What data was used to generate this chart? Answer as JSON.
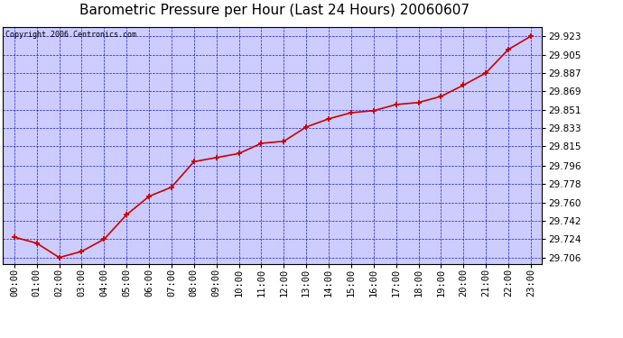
{
  "title": "Barometric Pressure per Hour (Last 24 Hours) 20060607",
  "copyright": "Copyright 2006 Centronics.com",
  "hours": [
    0,
    1,
    2,
    3,
    4,
    5,
    6,
    7,
    8,
    9,
    10,
    11,
    12,
    13,
    14,
    15,
    16,
    17,
    18,
    19,
    20,
    21,
    22,
    23
  ],
  "hour_labels": [
    "00:00",
    "01:00",
    "02:00",
    "03:00",
    "04:00",
    "05:00",
    "06:00",
    "07:00",
    "08:00",
    "09:00",
    "10:00",
    "11:00",
    "12:00",
    "13:00",
    "14:00",
    "15:00",
    "16:00",
    "17:00",
    "18:00",
    "19:00",
    "20:00",
    "21:00",
    "22:00",
    "23:00"
  ],
  "pressure": [
    29.726,
    29.72,
    29.706,
    29.712,
    29.724,
    29.748,
    29.766,
    29.775,
    29.8,
    29.804,
    29.808,
    29.818,
    29.82,
    29.834,
    29.842,
    29.848,
    29.85,
    29.856,
    29.858,
    29.864,
    29.875,
    29.887,
    29.91,
    29.923
  ],
  "yticks": [
    29.706,
    29.724,
    29.742,
    29.76,
    29.778,
    29.796,
    29.815,
    29.833,
    29.851,
    29.869,
    29.887,
    29.905,
    29.923
  ],
  "ymin": 29.7,
  "ymax": 29.932,
  "line_color": "#cc0000",
  "marker_color": "#cc0000",
  "grid_color": "#0000bb",
  "bg_color": "#ffffff",
  "plot_bg_color": "#ccccff",
  "title_fontsize": 11,
  "copyright_fontsize": 6,
  "tick_fontsize": 7.5
}
